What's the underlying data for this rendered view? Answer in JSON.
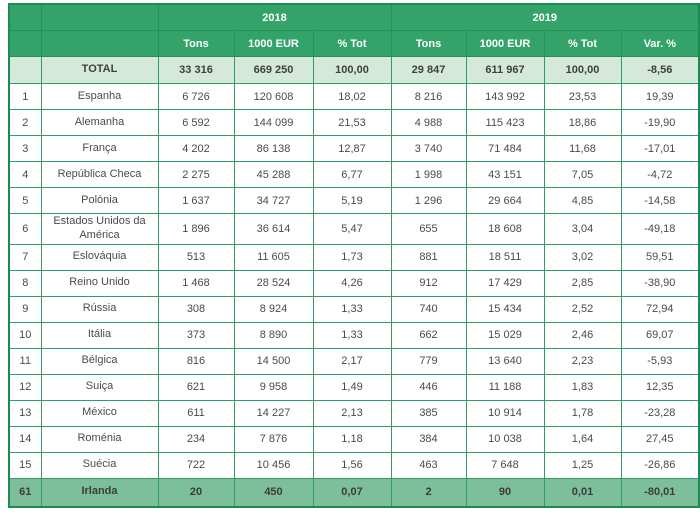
{
  "colors": {
    "header_green": "#33a36a",
    "grid_green": "#2f9e63",
    "outer_border_green": "#1d8a52",
    "total_row_bg": "#d5e9db",
    "highlight_row_bg": "#7dbf9a",
    "body_text": "#4a4a4a",
    "header_text": "#ffffff"
  },
  "table": {
    "year_headers": [
      "2018",
      "2019"
    ],
    "col_headers": [
      "Tons",
      "1000 EUR",
      "% Tot",
      "Tons",
      "1000 EUR",
      "% Tot",
      "Var. %"
    ],
    "total_row": {
      "rank": "",
      "country": "TOTAL",
      "values": [
        "33 316",
        "669 250",
        "100,00",
        "29 847",
        "611 967",
        "100,00",
        "-8,56"
      ]
    },
    "rows": [
      {
        "rank": "1",
        "country": "Espanha",
        "values": [
          "6 726",
          "120 608",
          "18,02",
          "8 216",
          "143 992",
          "23,53",
          "19,39"
        ]
      },
      {
        "rank": "2",
        "country": "Alemanha",
        "values": [
          "6 592",
          "144 099",
          "21,53",
          "4 988",
          "115 423",
          "18,86",
          "-19,90"
        ]
      },
      {
        "rank": "3",
        "country": "França",
        "values": [
          "4 202",
          "86 138",
          "12,87",
          "3 740",
          "71 484",
          "11,68",
          "-17,01"
        ]
      },
      {
        "rank": "4",
        "country": "República Checa",
        "values": [
          "2 275",
          "45 288",
          "6,77",
          "1 998",
          "43 151",
          "7,05",
          "-4,72"
        ]
      },
      {
        "rank": "5",
        "country": "Polónia",
        "values": [
          "1 637",
          "34 727",
          "5,19",
          "1 296",
          "29 664",
          "4,85",
          "-14,58"
        ]
      },
      {
        "rank": "6",
        "country": "Estados Unidos da América",
        "values": [
          "1 896",
          "36 614",
          "5,47",
          "655",
          "18 608",
          "3,04",
          "-49,18"
        ]
      },
      {
        "rank": "7",
        "country": "Eslováquia",
        "values": [
          "513",
          "11 605",
          "1,73",
          "881",
          "18 511",
          "3,02",
          "59,51"
        ]
      },
      {
        "rank": "8",
        "country": "Reino Unido",
        "values": [
          "1 468",
          "28 524",
          "4,26",
          "912",
          "17 429",
          "2,85",
          "-38,90"
        ]
      },
      {
        "rank": "9",
        "country": "Rússia",
        "values": [
          "308",
          "8 924",
          "1,33",
          "740",
          "15 434",
          "2,52",
          "72,94"
        ]
      },
      {
        "rank": "10",
        "country": "Itália",
        "values": [
          "373",
          "8 890",
          "1,33",
          "662",
          "15 029",
          "2,46",
          "69,07"
        ]
      },
      {
        "rank": "11",
        "country": "Bélgica",
        "values": [
          "816",
          "14 500",
          "2,17",
          "779",
          "13 640",
          "2,23",
          "-5,93"
        ]
      },
      {
        "rank": "12",
        "country": "Suiça",
        "values": [
          "621",
          "9 958",
          "1,49",
          "446",
          "11 188",
          "1,83",
          "12,35"
        ]
      },
      {
        "rank": "13",
        "country": "México",
        "values": [
          "611",
          "14 227",
          "2,13",
          "385",
          "10 914",
          "1,78",
          "-23,28"
        ]
      },
      {
        "rank": "14",
        "country": "Roménia",
        "values": [
          "234",
          "7 876",
          "1,18",
          "384",
          "10 038",
          "1,64",
          "27,45"
        ]
      },
      {
        "rank": "15",
        "country": "Suécia",
        "values": [
          "722",
          "10 456",
          "1,56",
          "463",
          "7 648",
          "1,25",
          "-26,86"
        ]
      },
      {
        "rank": "61",
        "country": "Irlanda",
        "values": [
          "20",
          "450",
          "0,07",
          "2",
          "90",
          "0,01",
          "-80,01"
        ],
        "highlight": true
      }
    ]
  }
}
